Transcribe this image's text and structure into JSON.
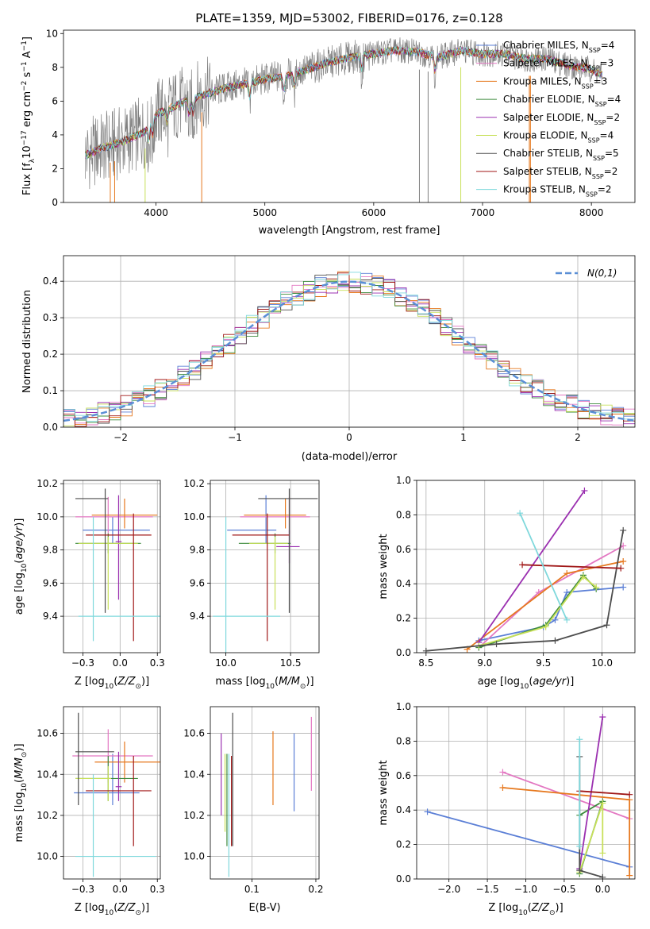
{
  "title": "PLATE=1359, MJD=53002, FIBERID=0176, z=0.128",
  "colors": {
    "Chabrier MILES": "#5b7fd6",
    "Salpeter MILES": "#e377c2",
    "Kroupa MILES": "#e6781e",
    "Chabrier ELODIE": "#3d8b3d",
    "Salpeter ELODIE": "#9b30b0",
    "Kroupa ELODIE": "#c8e05a",
    "Chabrier STELIB": "#4d4d4d",
    "Salpeter STELIB": "#a01818",
    "Kroupa STELIB": "#7fd8dc",
    "data": "#808080",
    "normal": "#5b8fd6"
  },
  "chart_data": [
    {
      "id": "spectrum",
      "type": "line",
      "xlabel": "wavelength [Angstrom, rest frame]",
      "ylabel": "Flux [f_λ 10^-17 erg cm^-2 s^-1 A^-1]",
      "xlim": [
        3150,
        8400
      ],
      "ylim": [
        0,
        10.2
      ],
      "xticks": [
        4000,
        5000,
        6000,
        7000,
        8000
      ],
      "yticks": [
        0,
        2,
        4,
        6,
        8,
        10
      ],
      "grid": false,
      "legend_position": "upper-right",
      "legend": [
        {
          "series": "Chabrier MILES",
          "label": "Chabrier MILES, N",
          "sub": "SSP",
          "eq": "=4"
        },
        {
          "series": "Salpeter MILES",
          "label": "Salpeter MILES, N",
          "sub": "SSP",
          "eq": "=3"
        },
        {
          "series": "Kroupa MILES",
          "label": "Kroupa MILES, N",
          "sub": "SSP",
          "eq": "=3"
        },
        {
          "series": "Chabrier ELODIE",
          "label": "Chabrier ELODIE, N",
          "sub": "SSP",
          "eq": "=4"
        },
        {
          "series": "Salpeter ELODIE",
          "label": "Salpeter ELODIE, N",
          "sub": "SSP",
          "eq": "=2"
        },
        {
          "series": "Kroupa ELODIE",
          "label": "Kroupa ELODIE, N",
          "sub": "SSP",
          "eq": "=4"
        },
        {
          "series": "Chabrier STELIB",
          "label": "Chabrier STELIB, N",
          "sub": "SSP",
          "eq": "=5"
        },
        {
          "series": "Salpeter STELIB",
          "label": "Salpeter STELIB, N",
          "sub": "SSP",
          "eq": "=2"
        },
        {
          "series": "Kroupa STELIB",
          "label": "Kroupa STELIB, N",
          "sub": "SSP",
          "eq": "=2"
        }
      ],
      "continuum": {
        "x": [
          3350,
          3500,
          3700,
          3900,
          4000,
          4200,
          4400,
          4600,
          4800,
          5000,
          5200,
          5400,
          5600,
          5800,
          6000,
          6200,
          6400,
          6600,
          6800,
          7000,
          7200,
          7400,
          7600,
          7800,
          8000,
          8100
        ],
        "y": [
          2.8,
          3.2,
          3.6,
          4.2,
          5.2,
          5.8,
          6.3,
          6.7,
          7.0,
          7.3,
          7.5,
          7.9,
          8.3,
          8.6,
          8.8,
          9.0,
          8.9,
          8.6,
          9.0,
          8.8,
          8.8,
          8.5,
          8.5,
          8.1,
          7.9,
          7.5
        ]
      },
      "absorption_lines": [
        3934,
        3969,
        4102,
        4304,
        4340,
        4861,
        5175,
        5270,
        5890,
        6563
      ],
      "artifacts": [
        {
          "series": "Kroupa MILES",
          "x": 3580
        },
        {
          "series": "Kroupa MILES",
          "x": 3620
        },
        {
          "series": "Kroupa ELODIE",
          "x": 3900
        },
        {
          "series": "Kroupa MILES",
          "x": 4420
        },
        {
          "series": "data",
          "x": 6420
        },
        {
          "series": "data",
          "x": 6500
        },
        {
          "series": "Kroupa ELODIE",
          "x": 6800
        },
        {
          "series": "Kroupa MILES",
          "x": 7430
        },
        {
          "series": "Kroupa MILES",
          "x": 7440
        }
      ]
    },
    {
      "id": "residuals",
      "type": "histogram",
      "xlabel": "(data-model)/error",
      "ylabel": "Normed distribution",
      "xlim": [
        -2.5,
        2.5
      ],
      "ylim": [
        0,
        0.47
      ],
      "xticks": [
        -2,
        -1,
        0,
        1,
        2
      ],
      "yticks": [
        0.0,
        0.1,
        0.2,
        0.3,
        0.4
      ],
      "grid": true,
      "legend_position": "upper-right",
      "legend_label": "N(0,1)",
      "bin_width": 0.1,
      "series_order": [
        "Chabrier MILES",
        "Salpeter MILES",
        "Kroupa MILES",
        "Chabrier ELODIE",
        "Salpeter ELODIE",
        "Kroupa ELODIE",
        "Chabrier STELIB",
        "Salpeter STELIB",
        "Kroupa STELIB"
      ]
    },
    {
      "id": "age-vs-Z",
      "type": "errorbar",
      "xlabel": "Z [log10(Z/Z⊙)]",
      "ylabel": "age [log10(age/yr)]",
      "xlim": [
        -0.38,
        0.27
      ],
      "ylim": [
        9.18,
        10.22
      ],
      "xticks": [
        -0.25,
        0.0,
        0.25
      ],
      "yticks": [
        9.4,
        9.6,
        9.8,
        10.0,
        10.2
      ],
      "grid": true,
      "points": [
        {
          "series": "Chabrier MILES",
          "x": -0.05,
          "xerr": [
            0.2,
            0.25
          ],
          "y": 9.92,
          "yerr": [
            0.08,
            0.08
          ]
        },
        {
          "series": "Salpeter MILES",
          "x": -0.08,
          "xerr": [
            0.22,
            0.3
          ],
          "y": 10.0,
          "yerr": [
            0.1,
            0.12
          ]
        },
        {
          "series": "Kroupa MILES",
          "x": 0.03,
          "xerr": [
            0.22,
            0.22
          ],
          "y": 10.01,
          "yerr": [
            0.08,
            0.1
          ]
        },
        {
          "series": "Chabrier ELODIE",
          "x": -0.08,
          "xerr": [
            0.22,
            0.22
          ],
          "y": 9.84,
          "yerr": [
            0.06,
            0.06
          ]
        },
        {
          "series": "Salpeter ELODIE",
          "x": -0.01,
          "xerr": [
            0.02,
            0.02
          ],
          "y": 9.85,
          "yerr": [
            0.35,
            0.28
          ]
        },
        {
          "series": "Kroupa ELODIE",
          "x": -0.08,
          "xerr": [
            0.2,
            0.2
          ],
          "y": 9.84,
          "yerr": [
            0.4,
            0.04
          ]
        },
        {
          "series": "Chabrier STELIB",
          "x": -0.1,
          "xerr": [
            0.2,
            0.02
          ],
          "y": 10.11,
          "yerr": [
            0.69,
            0.06
          ]
        },
        {
          "series": "Salpeter STELIB",
          "x": 0.09,
          "xerr": [
            0.32,
            0.12
          ],
          "y": 9.89,
          "yerr": [
            0.64,
            0.13
          ]
        },
        {
          "series": "Kroupa STELIB",
          "x": -0.18,
          "xerr": [
            0.1,
            0.45
          ],
          "y": 9.4,
          "yerr": [
            0.15,
            0.6
          ]
        }
      ]
    },
    {
      "id": "age-vs-mass",
      "type": "errorbar",
      "xlabel": "mass [log10(M/M⊙)]",
      "ylabel": "",
      "xlim": [
        9.88,
        10.72
      ],
      "ylim": [
        9.18,
        10.22
      ],
      "xticks": [
        10.0,
        10.5
      ],
      "yticks": [
        9.4,
        9.6,
        9.8,
        10.0,
        10.2
      ],
      "grid": true,
      "points": [
        {
          "series": "Chabrier MILES",
          "x": 10.31,
          "xerr": [
            0.3,
            0.08
          ],
          "y": 9.92,
          "yerr": [
            0.08,
            0.21
          ]
        },
        {
          "series": "Salpeter MILES",
          "x": 10.49,
          "xerr": [
            0.38,
            0.16
          ],
          "y": 10.0,
          "yerr": [
            0.1,
            0.12
          ]
        },
        {
          "series": "Kroupa MILES",
          "x": 10.46,
          "xerr": [
            0.32,
            0.16
          ],
          "y": 10.01,
          "yerr": [
            0.08,
            0.1
          ]
        },
        {
          "series": "Chabrier ELODIE",
          "x": 10.38,
          "xerr": [
            0.28,
            0.12
          ],
          "y": 9.84,
          "yerr": [
            0.06,
            0.06
          ]
        },
        {
          "series": "Salpeter ELODIE",
          "x": 10.49,
          "xerr": [
            0.1,
            0.08
          ],
          "y": 9.82,
          "yerr": [
            0.1,
            0.1
          ]
        },
        {
          "series": "Kroupa ELODIE",
          "x": 10.38,
          "xerr": [
            0.2,
            0.1
          ],
          "y": 9.84,
          "yerr": [
            0.4,
            0.04
          ]
        },
        {
          "series": "Chabrier STELIB",
          "x": 10.49,
          "xerr": [
            0.24,
            0.22
          ],
          "y": 10.11,
          "yerr": [
            0.69,
            0.06
          ]
        },
        {
          "series": "Salpeter STELIB",
          "x": 10.32,
          "xerr": [
            0.27,
            0.17
          ],
          "y": 9.89,
          "yerr": [
            0.64,
            0.13
          ]
        },
        {
          "series": "Kroupa STELIB",
          "x": 10.0,
          "xerr": [
            0.1,
            0.42
          ],
          "y": 9.4,
          "yerr": [
            0.4,
            0.6
          ]
        }
      ]
    },
    {
      "id": "weight-vs-age",
      "type": "line",
      "xlabel": "age [log10(age/yr)]",
      "ylabel": "mass weight",
      "xlim": [
        8.42,
        10.28
      ],
      "ylim": [
        0,
        1.0
      ],
      "xticks": [
        8.5,
        9.0,
        9.5,
        10.0
      ],
      "yticks": [
        0.0,
        0.2,
        0.4,
        0.6,
        0.8,
        1.0
      ],
      "grid": true,
      "series": [
        {
          "name": "Chabrier MILES",
          "x": [
            8.95,
            9.5,
            9.6,
            9.7,
            10.18
          ],
          "y": [
            0.07,
            0.15,
            0.19,
            0.35,
            0.38
          ]
        },
        {
          "name": "Salpeter MILES",
          "x": [
            8.95,
            9.46,
            10.18
          ],
          "y": [
            0.03,
            0.35,
            0.62
          ]
        },
        {
          "name": "Kroupa MILES",
          "x": [
            8.85,
            9.7,
            10.18
          ],
          "y": [
            0.02,
            0.46,
            0.53
          ]
        },
        {
          "name": "Chabrier ELODIE",
          "x": [
            8.95,
            9.52,
            9.84,
            9.95
          ],
          "y": [
            0.03,
            0.16,
            0.45,
            0.37
          ]
        },
        {
          "name": "Salpeter ELODIE",
          "x": [
            8.95,
            9.85
          ],
          "y": [
            0.06,
            0.94
          ]
        },
        {
          "name": "Kroupa ELODIE",
          "x": [
            8.95,
            9.52,
            9.84,
            9.95
          ],
          "y": [
            0.04,
            0.15,
            0.44,
            0.38
          ]
        },
        {
          "name": "Chabrier STELIB",
          "x": [
            8.5,
            9.1,
            9.6,
            10.04,
            10.18
          ],
          "y": [
            0.01,
            0.05,
            0.07,
            0.16,
            0.71
          ]
        },
        {
          "name": "Salpeter STELIB",
          "x": [
            9.32,
            10.16
          ],
          "y": [
            0.51,
            0.49
          ]
        },
        {
          "name": "Kroupa STELIB",
          "x": [
            9.3,
            9.7
          ],
          "y": [
            0.81,
            0.19
          ]
        }
      ]
    },
    {
      "id": "mass-vs-Z",
      "type": "errorbar",
      "xlabel": "Z [log10(Z/Z⊙)]",
      "ylabel": "mass [log10(M/M⊙)]",
      "xlim": [
        -0.38,
        0.27
      ],
      "ylim": [
        9.89,
        10.73
      ],
      "xticks": [
        -0.25,
        0.0,
        0.25
      ],
      "yticks": [
        10.0,
        10.2,
        10.4,
        10.6
      ],
      "grid": true,
      "points": [
        {
          "series": "Chabrier MILES",
          "x": -0.05,
          "xerr": [
            0.26,
            0.18
          ],
          "y": 10.31,
          "yerr": [
            0.06,
            0.19
          ]
        },
        {
          "series": "Salpeter MILES",
          "x": -0.08,
          "xerr": [
            0.24,
            0.3
          ],
          "y": 10.49,
          "yerr": [
            0.13,
            0.13
          ]
        },
        {
          "series": "Kroupa MILES",
          "x": 0.03,
          "xerr": [
            0.2,
            0.24
          ],
          "y": 10.46,
          "yerr": [
            0.1,
            0.1
          ]
        },
        {
          "series": "Chabrier ELODIE",
          "x": -0.08,
          "xerr": [
            0.22,
            0.2
          ],
          "y": 10.38,
          "yerr": [
            0.11,
            0.11
          ]
        },
        {
          "series": "Salpeter ELODIE",
          "x": -0.01,
          "xerr": [
            0.02,
            0.02
          ],
          "y": 10.34,
          "yerr": [
            0.07,
            0.17
          ]
        },
        {
          "series": "Kroupa ELODIE",
          "x": -0.08,
          "xerr": [
            0.22,
            0.02
          ],
          "y": 10.38,
          "yerr": [
            0.11,
            0.06
          ]
        },
        {
          "series": "Chabrier STELIB",
          "x": -0.28,
          "xerr": [
            0.02,
            0.24
          ],
          "y": 10.51,
          "yerr": [
            0.26,
            0.19
          ]
        },
        {
          "series": "Salpeter STELIB",
          "x": 0.09,
          "xerr": [
            0.32,
            0.12
          ],
          "y": 10.32,
          "yerr": [
            0.27,
            0.17
          ]
        },
        {
          "series": "Kroupa STELIB",
          "x": -0.18,
          "xerr": [
            0.12,
            0.42
          ],
          "y": 10.0,
          "yerr": [
            0.1,
            0.4
          ]
        }
      ]
    },
    {
      "id": "mass-vs-ebv",
      "type": "errorbar",
      "xlabel": "E(B-V)",
      "ylabel": "",
      "xlim": [
        0.035,
        0.205
      ],
      "ylim": [
        9.89,
        10.73
      ],
      "xticks": [
        0.1,
        0.2
      ],
      "yticks": [
        10.0,
        10.2,
        10.4,
        10.6
      ],
      "grid": true,
      "points": [
        {
          "series": "Chabrier MILES",
          "x": 0.166,
          "xerr": [
            0,
            0
          ],
          "y": 10.38,
          "yerr": [
            0.16,
            0.22
          ]
        },
        {
          "series": "Salpeter MILES",
          "x": 0.193,
          "xerr": [
            0,
            0
          ],
          "y": 10.5,
          "yerr": [
            0.18,
            0.18
          ]
        },
        {
          "series": "Kroupa MILES",
          "x": 0.133,
          "xerr": [
            0,
            0
          ],
          "y": 10.43,
          "yerr": [
            0.18,
            0.18
          ]
        },
        {
          "series": "Chabrier ELODIE",
          "x": 0.061,
          "xerr": [
            0,
            0
          ],
          "y": 10.3,
          "yerr": [
            0.25,
            0.2
          ]
        },
        {
          "series": "Salpeter ELODIE",
          "x": 0.052,
          "xerr": [
            0,
            0
          ],
          "y": 10.4,
          "yerr": [
            0.2,
            0.2
          ]
        },
        {
          "series": "Kroupa ELODIE",
          "x": 0.058,
          "xerr": [
            0,
            0
          ],
          "y": 10.3,
          "yerr": [
            0.18,
            0.2
          ]
        },
        {
          "series": "Chabrier STELIB",
          "x": 0.07,
          "xerr": [
            0,
            0
          ],
          "y": 10.39,
          "yerr": [
            0.34,
            0.31
          ]
        },
        {
          "series": "Salpeter STELIB",
          "x": 0.068,
          "xerr": [
            0,
            0
          ],
          "y": 10.27,
          "yerr": [
            0.22,
            0.22
          ]
        },
        {
          "series": "Kroupa STELIB",
          "x": 0.064,
          "xerr": [
            0,
            0
          ],
          "y": 10.2,
          "yerr": [
            0.3,
            0.3
          ]
        }
      ]
    },
    {
      "id": "weight-vs-Z",
      "type": "line",
      "xlabel": "Z [log10(Z/Z⊙)]",
      "ylabel": "mass weight",
      "xlim": [
        -2.42,
        0.42
      ],
      "ylim": [
        0,
        1.0
      ],
      "xticks": [
        -2.0,
        -1.5,
        -1.0,
        -0.5,
        0.0
      ],
      "yticks": [
        0.0,
        0.2,
        0.4,
        0.6,
        0.8,
        1.0
      ],
      "grid": true,
      "series": [
        {
          "name": "Chabrier MILES",
          "x": [
            -2.28,
            0.35
          ],
          "y": [
            0.39,
            0.07
          ]
        },
        {
          "name": "Salpeter MILES",
          "x": [
            -1.3,
            0.35
          ],
          "y": [
            0.62,
            0.35
          ]
        },
        {
          "name": "Kroupa MILES",
          "x": [
            -1.3,
            0.35,
            0.35
          ],
          "y": [
            0.53,
            0.46,
            0.02
          ]
        },
        {
          "name": "Chabrier ELODIE",
          "x": [
            -0.3,
            0.0,
            -0.3
          ],
          "y": [
            0.03,
            0.45,
            0.37
          ]
        },
        {
          "name": "Salpeter ELODIE",
          "x": [
            -0.3,
            0.0
          ],
          "y": [
            0.06,
            0.94
          ]
        },
        {
          "name": "Kroupa ELODIE",
          "x": [
            -0.3,
            0.0,
            0.0
          ],
          "y": [
            0.04,
            0.44,
            0.15
          ]
        },
        {
          "name": "Chabrier STELIB",
          "x": [
            -0.3,
            -0.3,
            0.0
          ],
          "y": [
            0.71,
            0.05,
            0.01
          ]
        },
        {
          "name": "Salpeter STELIB",
          "x": [
            -0.3,
            0.35
          ],
          "y": [
            0.51,
            0.49
          ]
        },
        {
          "name": "Kroupa STELIB",
          "x": [
            -0.3,
            -0.3
          ],
          "y": [
            0.81,
            0.19
          ]
        }
      ]
    }
  ]
}
